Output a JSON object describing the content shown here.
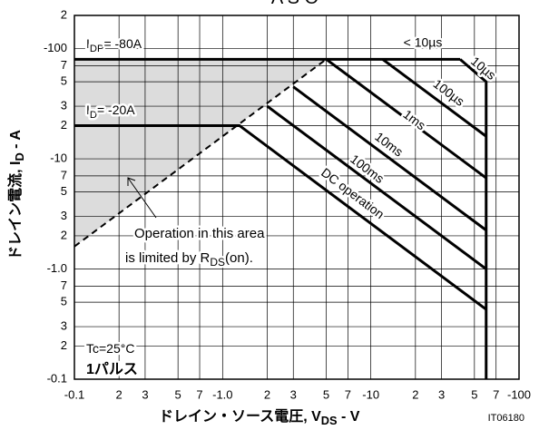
{
  "chart_data": {
    "type": "line",
    "title": "A S O",
    "x_label": {
      "text": "ドレイン・ソース電圧, V",
      "sub": "DS",
      "unit": " -  V"
    },
    "y_label": {
      "text": "ドレイン電流, I",
      "sub": "D",
      "unit": " -  A"
    },
    "code": "IT06180",
    "log_scale": true,
    "grid": true,
    "line_color": "#000000",
    "shade_color": "#dcdcdc",
    "xlim": [
      -0.1,
      -100
    ],
    "ylim": [
      -0.1,
      -200
    ],
    "xticks": [
      -0.1,
      {
        "value": -0.2,
        "label": "2"
      },
      {
        "value": -0.3,
        "label": "3"
      },
      {
        "value": -0.5,
        "label": "5"
      },
      {
        "value": -0.7,
        "label": "7"
      },
      {
        "value": -1,
        "label": "-1.0"
      },
      {
        "value": -2,
        "label": "2"
      },
      {
        "value": -3,
        "label": "3"
      },
      {
        "value": -5,
        "label": "5"
      },
      {
        "value": -7,
        "label": "7"
      },
      -10,
      {
        "value": -20,
        "label": "2"
      },
      {
        "value": -30,
        "label": "3"
      },
      {
        "value": -50,
        "label": "5"
      },
      {
        "value": -70,
        "label": "7"
      },
      -100
    ],
    "yticks": [
      -0.1,
      {
        "value": -0.2,
        "label": "2"
      },
      {
        "value": -0.3,
        "label": "3"
      },
      {
        "value": -0.5,
        "label": "5"
      },
      {
        "value": -0.7,
        "label": "7"
      },
      {
        "value": -1,
        "label": "-1.0"
      },
      {
        "value": -2,
        "label": "2"
      },
      {
        "value": -3,
        "label": "3"
      },
      {
        "value": -5,
        "label": "5"
      },
      {
        "value": -7,
        "label": "7"
      },
      -10,
      {
        "value": -20,
        "label": "2"
      },
      {
        "value": -30,
        "label": "3"
      },
      {
        "value": -50,
        "label": "5"
      },
      {
        "value": -70,
        "label": "7"
      },
      -100,
      {
        "value": -200,
        "label": "2"
      }
    ],
    "series": [
      {
        "name": "< 10µs",
        "x": [
          -0.1,
          -40
        ],
        "values": [
          -80,
          -80
        ]
      },
      {
        "name": "10µs",
        "x": [
          -40,
          -60,
          -60
        ],
        "values": [
          -80,
          -50,
          -0.1
        ]
      },
      {
        "name": "100µs",
        "x": [
          -12,
          -60
        ],
        "values": [
          -80,
          -16
        ]
      },
      {
        "name": "1ms",
        "x": [
          -5,
          -60
        ],
        "values": [
          -80,
          -6.7
        ]
      },
      {
        "name": "10ms",
        "x": [
          -3,
          -60
        ],
        "values": [
          -45,
          -2.25
        ]
      },
      {
        "name": "100ms",
        "x": [
          -2,
          -60
        ],
        "values": [
          -30,
          -1
        ]
      },
      {
        "name": "DC operation",
        "x": [
          -0.1,
          -1.3,
          -60
        ],
        "values": [
          -20,
          -20,
          -0.43
        ]
      }
    ],
    "rds_limit": {
      "x": [
        -0.1,
        -5
      ],
      "values": [
        -1.6,
        -80
      ]
    },
    "annotations": {
      "idp": {
        "text": "I",
        "sub": "DP",
        "rest": "= -80A"
      },
      "id": {
        "text": "I",
        "sub": "D",
        "rest": "= -20A"
      },
      "conditions": [
        "Tc=25°C",
        "1パルス"
      ],
      "rds_note": {
        "line1": "Operation in this area",
        "line2": "is limited by R",
        "sub": "DS",
        "rest": "(on)."
      }
    }
  }
}
